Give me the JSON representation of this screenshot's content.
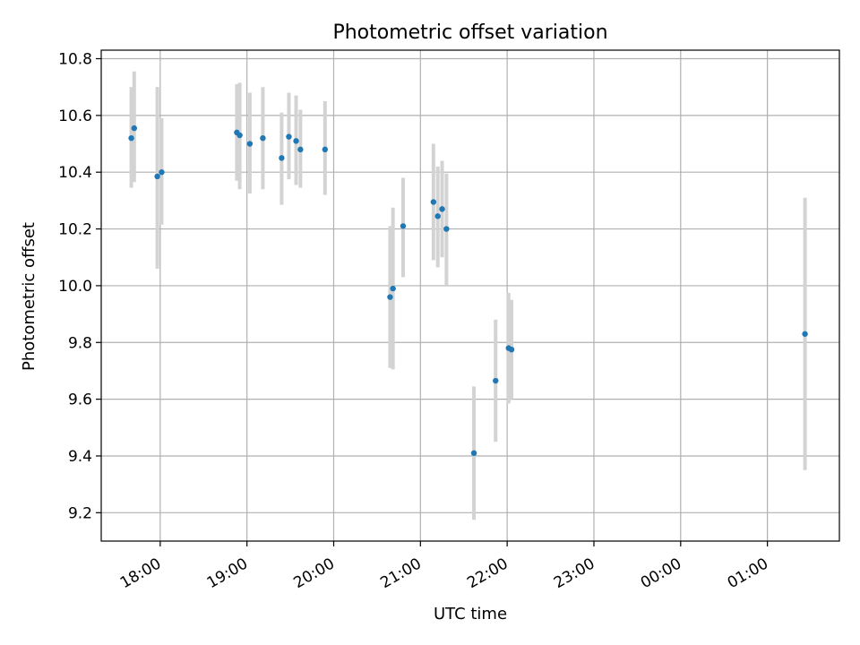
{
  "chart_data": {
    "type": "scatter",
    "title": "Photometric offset variation",
    "xlabel": "UTC time",
    "ylabel": "Photometric offset",
    "x_ticks": [
      "18:00",
      "19:00",
      "20:00",
      "21:00",
      "22:00",
      "23:00",
      "00:00",
      "01:00"
    ],
    "x_tick_hours": [
      18,
      19,
      20,
      21,
      22,
      23,
      24,
      25
    ],
    "xlim_hours": [
      17.32,
      25.83
    ],
    "y_ticks": [
      "9.2",
      "9.4",
      "9.6",
      "9.8",
      "10.0",
      "10.2",
      "10.4",
      "10.6",
      "10.8"
    ],
    "ylim": [
      9.1,
      10.83
    ],
    "grid": true,
    "colors": {
      "point": "#1f77b4",
      "errorbar": "#d3d3d3",
      "grid": "#b0b0b0"
    },
    "points": [
      {
        "time": "17:40",
        "y": 10.52,
        "ylo": 10.345,
        "yhi": 10.7
      },
      {
        "time": "17:42",
        "y": 10.555,
        "ylo": 10.365,
        "yhi": 10.755
      },
      {
        "time": "17:58",
        "y": 10.385,
        "ylo": 10.06,
        "yhi": 10.7
      },
      {
        "time": "18:01",
        "y": 10.4,
        "ylo": 10.215,
        "yhi": 10.59
      },
      {
        "time": "18:53",
        "y": 10.54,
        "ylo": 10.37,
        "yhi": 10.71
      },
      {
        "time": "18:55",
        "y": 10.53,
        "ylo": 10.34,
        "yhi": 10.715
      },
      {
        "time": "19:02",
        "y": 10.5,
        "ylo": 10.325,
        "yhi": 10.68
      },
      {
        "time": "19:11",
        "y": 10.52,
        "ylo": 10.34,
        "yhi": 10.7
      },
      {
        "time": "19:24",
        "y": 10.45,
        "ylo": 10.285,
        "yhi": 10.61
      },
      {
        "time": "19:29",
        "y": 10.525,
        "ylo": 10.375,
        "yhi": 10.68
      },
      {
        "time": "19:34",
        "y": 10.51,
        "ylo": 10.355,
        "yhi": 10.67
      },
      {
        "time": "19:37",
        "y": 10.48,
        "ylo": 10.345,
        "yhi": 10.62
      },
      {
        "time": "19:54",
        "y": 10.48,
        "ylo": 10.32,
        "yhi": 10.65
      },
      {
        "time": "20:39",
        "y": 9.96,
        "ylo": 9.71,
        "yhi": 10.21
      },
      {
        "time": "20:41",
        "y": 9.99,
        "ylo": 9.705,
        "yhi": 10.275
      },
      {
        "time": "20:48",
        "y": 10.21,
        "ylo": 10.03,
        "yhi": 10.38
      },
      {
        "time": "21:09",
        "y": 10.295,
        "ylo": 10.09,
        "yhi": 10.5
      },
      {
        "time": "21:12",
        "y": 10.245,
        "ylo": 10.065,
        "yhi": 10.42
      },
      {
        "time": "21:15",
        "y": 10.27,
        "ylo": 10.1,
        "yhi": 10.44
      },
      {
        "time": "21:18",
        "y": 10.2,
        "ylo": 10.0,
        "yhi": 10.395
      },
      {
        "time": "21:37",
        "y": 9.41,
        "ylo": 9.175,
        "yhi": 9.645
      },
      {
        "time": "21:52",
        "y": 9.665,
        "ylo": 9.45,
        "yhi": 9.88
      },
      {
        "time": "22:01",
        "y": 9.78,
        "ylo": 9.585,
        "yhi": 9.975
      },
      {
        "time": "22:03",
        "y": 9.775,
        "ylo": 9.6,
        "yhi": 9.95
      },
      {
        "time": "01:26",
        "y": 9.83,
        "ylo": 9.35,
        "yhi": 10.31
      }
    ]
  }
}
